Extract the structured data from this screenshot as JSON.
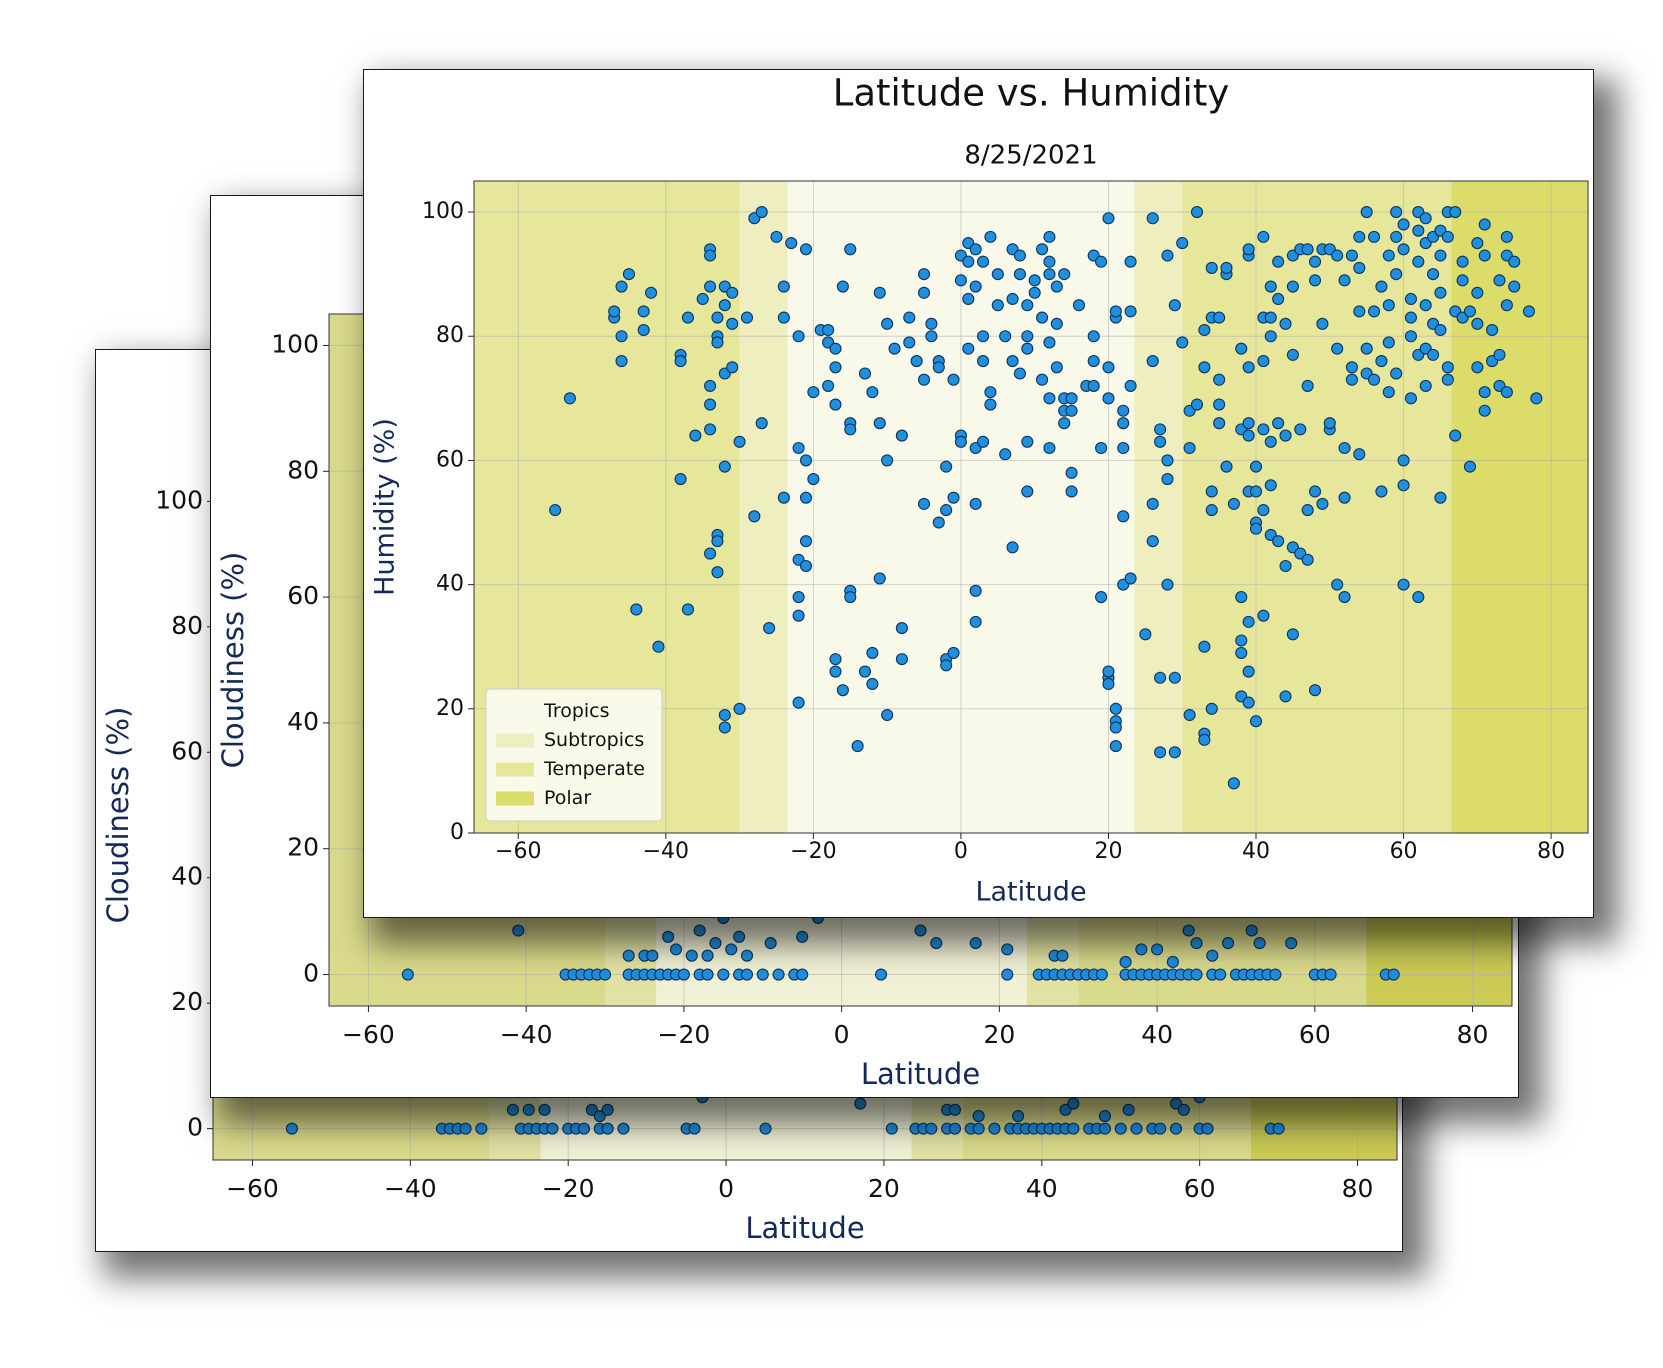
{
  "chart_data": [
    {
      "type": "scatter",
      "xlabel": "Latitude",
      "ylabel": "Cloudiness (%)",
      "xlim": [
        -65,
        85
      ],
      "ylim": [
        -5,
        105
      ],
      "xticks": [
        {
          "value": -60,
          "label": "−60"
        },
        {
          "value": -40,
          "label": "−40"
        },
        {
          "value": -20,
          "label": "−20"
        },
        0,
        20,
        40,
        60,
        80
      ],
      "yticks": [
        0,
        20,
        40,
        60,
        80,
        100
      ],
      "grid": true,
      "color": "#1f8fe0",
      "zones": [
        {
          "color": "#f1f1d6",
          "ranges": [
            [
              -23.5,
              23.5
            ]
          ]
        },
        {
          "color": "#e2e2a4",
          "ranges": [
            [
              -30,
              -23.5
            ],
            [
              23.5,
              30
            ]
          ]
        },
        {
          "color": "#dada8c",
          "ranges": [
            [
              -66.5,
              -30
            ],
            [
              30,
              66.5
            ]
          ]
        },
        {
          "color": "#cbcb55",
          "ranges": [
            [
              -90,
              -66.5
            ],
            [
              66.5,
              90
            ]
          ]
        }
      ],
      "x": [
        -55,
        -36,
        -35,
        -34,
        -33,
        -31,
        -26,
        -25,
        -24,
        -23,
        -22,
        -20,
        -19,
        -18,
        -16,
        -15,
        -13,
        -5,
        -4,
        5,
        21,
        24,
        25,
        26,
        28,
        29,
        31,
        32,
        34,
        36,
        37,
        38,
        39,
        40,
        41,
        42,
        43,
        44,
        46,
        47,
        48,
        50,
        52,
        54,
        55,
        57,
        60,
        61,
        69,
        70,
        -27,
        -25,
        -23,
        -17,
        -16,
        -15,
        -3,
        17,
        28,
        29,
        37,
        43,
        44,
        51,
        57,
        60,
        32,
        48,
        58
      ],
      "values": [
        0,
        0,
        0,
        0,
        0,
        0,
        0,
        0,
        0,
        0,
        0,
        0,
        0,
        0,
        0,
        0,
        0,
        0,
        0,
        0,
        0,
        0,
        0,
        0,
        0,
        0,
        0,
        0,
        0,
        0,
        0,
        0,
        0,
        0,
        0,
        0,
        0,
        0,
        0,
        0,
        0,
        0,
        0,
        0,
        0,
        0,
        0,
        0,
        0,
        0,
        3,
        3,
        3,
        3,
        2,
        3,
        5,
        4,
        3,
        3,
        2,
        3,
        4,
        3,
        4,
        5,
        2,
        2,
        3
      ]
    },
    {
      "type": "scatter",
      "xlabel": "Latitude",
      "ylabel": "Cloudiness (%)",
      "xlim": [
        -65,
        85
      ],
      "ylim": [
        -5,
        105
      ],
      "xticks": [
        {
          "value": -60,
          "label": "−60"
        },
        {
          "value": -40,
          "label": "−40"
        },
        {
          "value": -20,
          "label": "−20"
        },
        0,
        20,
        40,
        60,
        80
      ],
      "yticks": [
        0,
        20,
        40,
        60,
        80,
        100
      ],
      "grid": true,
      "color": "#1f8fe0",
      "zones": [
        {
          "color": "#f1f1d6",
          "ranges": [
            [
              -23.5,
              23.5
            ]
          ]
        },
        {
          "color": "#e2e2a4",
          "ranges": [
            [
              -30,
              -23.5
            ],
            [
              23.5,
              30
            ]
          ]
        },
        {
          "color": "#dada8c",
          "ranges": [
            [
              -66.5,
              -30
            ],
            [
              30,
              66.5
            ]
          ]
        },
        {
          "color": "#cbcb55",
          "ranges": [
            [
              -90,
              -66.5
            ],
            [
              66.5,
              90
            ]
          ]
        }
      ],
      "x": [
        -55,
        -35,
        -34,
        -33,
        -32,
        -31,
        -30,
        -27,
        -26,
        -25,
        -24,
        -23,
        -22,
        -21,
        -20,
        -18,
        -17,
        -15,
        -13,
        -12,
        -10,
        -8,
        -6,
        -5,
        5,
        21,
        25,
        26,
        27,
        28,
        29,
        30,
        31,
        32,
        33,
        36,
        37,
        38,
        39,
        40,
        41,
        42,
        43,
        44,
        45,
        47,
        48,
        50,
        51,
        52,
        53,
        54,
        55,
        60,
        61,
        62,
        69,
        70,
        -41,
        -27,
        -25,
        -24,
        -22,
        -21,
        -19,
        -18,
        -17,
        -16,
        -15,
        -14,
        -13,
        -12,
        -9,
        -5,
        -3,
        10,
        12,
        17,
        21,
        27,
        28,
        40,
        44,
        45,
        47,
        49,
        52,
        53,
        57,
        42,
        36,
        38
      ],
      "values": [
        0,
        0,
        0,
        0,
        0,
        0,
        0,
        0,
        0,
        0,
        0,
        0,
        0,
        0,
        0,
        0,
        0,
        0,
        0,
        0,
        0,
        0,
        0,
        0,
        0,
        0,
        0,
        0,
        0,
        0,
        0,
        0,
        0,
        0,
        0,
        0,
        0,
        0,
        0,
        0,
        0,
        0,
        0,
        0,
        0,
        0,
        0,
        0,
        0,
        0,
        0,
        0,
        0,
        0,
        0,
        0,
        0,
        0,
        7,
        3,
        3,
        3,
        6,
        4,
        3,
        7,
        3,
        5,
        9,
        4,
        6,
        3,
        5,
        6,
        9,
        7,
        5,
        5,
        4,
        3,
        3,
        4,
        7,
        5,
        3,
        5,
        7,
        5,
        5,
        2,
        2,
        4
      ]
    },
    {
      "type": "scatter",
      "title": "Latitude vs. Humidity",
      "subtitle": "8/25/2021",
      "xlabel": "Latitude",
      "ylabel": "Humidity (%)",
      "xlim": [
        -66,
        85
      ],
      "ylim": [
        0,
        105
      ],
      "xticks": [
        {
          "value": -60,
          "label": "−60"
        },
        {
          "value": -40,
          "label": "−40"
        },
        {
          "value": -20,
          "label": "−20"
        },
        0,
        20,
        40,
        60,
        80
      ],
      "yticks": [
        0,
        20,
        40,
        60,
        80,
        100
      ],
      "grid": true,
      "color": "#1f8fe0",
      "legend": "lower left",
      "zones": [
        {
          "name": "Tropics",
          "color": "#f9f9ea",
          "ranges": [
            [
              -23.5,
              23.5
            ]
          ]
        },
        {
          "name": "Subtropics",
          "color": "#eeeebf",
          "ranges": [
            [
              -30,
              -23.5
            ],
            [
              23.5,
              30
            ]
          ]
        },
        {
          "name": "Temperate",
          "color": "#e7e79c",
          "ranges": [
            [
              -66.5,
              -30
            ],
            [
              30,
              66.5
            ]
          ]
        },
        {
          "name": "Polar",
          "color": "#dcdc6a",
          "ranges": [
            [
              -90,
              -66.5
            ],
            [
              66.5,
              90
            ]
          ]
        }
      ],
      "x": [
        -55,
        -53,
        -47,
        -47,
        -46,
        -46,
        -46,
        -45,
        -44,
        -43,
        -43,
        -42,
        -41,
        -38,
        -38,
        -38,
        -37,
        -37,
        -36,
        -35,
        -34,
        -34,
        -34,
        -34,
        -34,
        -34,
        -34,
        -33,
        -33,
        -33,
        -33,
        -33,
        -33,
        -32,
        -32,
        -32,
        -32,
        -32,
        -32,
        -31,
        -31,
        -31,
        -30,
        -30,
        -29,
        -28,
        -28,
        -27,
        -27,
        -26,
        -25,
        -24,
        -24,
        -24,
        -23,
        -22,
        -22,
        -22,
        -22,
        -22,
        -22,
        -21,
        -21,
        -21,
        -21,
        -21,
        -20,
        -20,
        -19,
        -18,
        -18,
        -18,
        -17,
        -17,
        -17,
        -17,
        -17,
        -16,
        -16,
        -15,
        -15,
        -15,
        -15,
        -15,
        -14,
        -13,
        -13,
        -12,
        -12,
        -12,
        -11,
        -11,
        -11,
        -10,
        -10,
        -10,
        -9,
        -8,
        -8,
        -8,
        -7,
        -7,
        -6,
        -5,
        -5,
        -5,
        -5,
        -4,
        -4,
        -3,
        -3,
        -3,
        -2,
        -2,
        -2,
        -2,
        -1,
        -1,
        -1,
        0,
        0,
        0,
        0,
        1,
        1,
        1,
        1,
        2,
        2,
        2,
        2,
        2,
        2,
        3,
        3,
        3,
        3,
        4,
        4,
        4,
        5,
        5,
        6,
        6,
        7,
        7,
        7,
        7,
        8,
        8,
        8,
        9,
        9,
        9,
        9,
        9,
        10,
        10,
        11,
        11,
        11,
        12,
        12,
        12,
        12,
        12,
        12,
        13,
        13,
        13,
        14,
        14,
        14,
        14,
        15,
        15,
        15,
        15,
        16,
        17,
        18,
        18,
        18,
        18,
        19,
        19,
        19,
        20,
        20,
        20,
        20,
        20,
        20,
        21,
        21,
        21,
        21,
        21,
        21,
        22,
        22,
        22,
        22,
        22,
        23,
        23,
        23,
        23,
        26,
        25,
        26,
        26,
        26,
        27,
        27,
        27,
        27,
        28,
        28,
        28,
        28,
        29,
        29,
        29,
        30,
        30,
        31,
        31,
        31,
        32,
        32,
        33,
        33,
        33,
        33,
        33,
        34,
        34,
        34,
        34,
        34,
        35,
        35,
        35,
        35,
        36,
        36,
        36,
        37,
        37,
        38,
        38,
        38,
        38,
        38,
        38,
        39,
        39,
        39,
        39,
        39,
        39,
        39,
        39,
        39,
        40,
        40,
        40,
        40,
        40,
        41,
        41,
        41,
        41,
        41,
        41,
        42,
        42,
        42,
        42,
        42,
        42,
        43,
        43,
        43,
        43,
        44,
        44,
        44,
        44,
        45,
        45,
        45,
        45,
        45,
        46,
        46,
        46,
        47,
        47,
        47,
        47,
        48,
        48,
        48,
        48,
        49,
        49,
        49,
        50,
        50,
        50,
        51,
        51,
        51,
        52,
        52,
        52,
        52,
        53,
        53,
        53,
        54,
        54,
        54,
        54,
        55,
        55,
        55,
        56,
        56,
        56,
        57,
        57,
        57,
        58,
        58,
        58,
        58,
        59,
        59,
        59,
        59,
        60,
        60,
        60,
        60,
        60,
        61,
        61,
        61,
        61,
        62,
        62,
        62,
        62,
        62,
        63,
        63,
        63,
        63,
        63,
        64,
        64,
        64,
        64,
        65,
        65,
        65,
        65,
        65,
        66,
        66,
        66,
        66,
        67,
        67,
        67,
        68,
        68,
        68,
        69,
        69,
        70,
        70,
        70,
        70,
        71,
        71,
        71,
        71,
        72,
        72,
        73,
        73,
        73,
        74,
        74,
        74,
        74,
        75,
        75,
        77,
        78
      ],
      "values": [
        52,
        70,
        83,
        84,
        88,
        80,
        76,
        90,
        36,
        81,
        84,
        87,
        30,
        57,
        77,
        76,
        36,
        83,
        64,
        86,
        88,
        94,
        93,
        72,
        69,
        65,
        45,
        83,
        80,
        79,
        48,
        47,
        42,
        88,
        85,
        74,
        59,
        19,
        17,
        87,
        75,
        82,
        20,
        63,
        83,
        99,
        51,
        100,
        66,
        33,
        96,
        88,
        54,
        83,
        95,
        80,
        62,
        44,
        38,
        35,
        21,
        94,
        60,
        47,
        43,
        54,
        57,
        71,
        81,
        81,
        72,
        79,
        78,
        75,
        69,
        28,
        26,
        23,
        88,
        94,
        66,
        65,
        39,
        38,
        14,
        74,
        26,
        71,
        24,
        29,
        66,
        87,
        41,
        82,
        60,
        19,
        78,
        64,
        33,
        28,
        79,
        83,
        76,
        73,
        90,
        87,
        53,
        82,
        80,
        76,
        75,
        50,
        52,
        59,
        28,
        27,
        29,
        54,
        73,
        93,
        89,
        64,
        63,
        86,
        78,
        95,
        92,
        94,
        88,
        62,
        53,
        39,
        34,
        92,
        80,
        76,
        63,
        96,
        71,
        69,
        85,
        90,
        80,
        61,
        94,
        86,
        76,
        46,
        74,
        90,
        93,
        85,
        80,
        78,
        55,
        63,
        87,
        89,
        94,
        73,
        83,
        96,
        90,
        92,
        79,
        70,
        62,
        82,
        75,
        88,
        90,
        70,
        68,
        66,
        58,
        55,
        68,
        70,
        85,
        72,
        93,
        80,
        76,
        72,
        92,
        62,
        38,
        25,
        26,
        99,
        75,
        70,
        24,
        83,
        84,
        18,
        17,
        14,
        20,
        51,
        40,
        62,
        68,
        66,
        41,
        92,
        84,
        72,
        99,
        32,
        47,
        53,
        76,
        13,
        25,
        65,
        63,
        93,
        60,
        57,
        40,
        85,
        13,
        25,
        95,
        79,
        19,
        62,
        68,
        100,
        69,
        75,
        81,
        16,
        15,
        30,
        91,
        83,
        55,
        52,
        20,
        83,
        73,
        66,
        69,
        90,
        91,
        59,
        53,
        8,
        78,
        65,
        38,
        31,
        29,
        22,
        93,
        94,
        66,
        64,
        75,
        55,
        34,
        26,
        21,
        59,
        55,
        50,
        49,
        18,
        96,
        83,
        76,
        65,
        52,
        35,
        88,
        83,
        80,
        63,
        56,
        48,
        86,
        92,
        66,
        47,
        82,
        64,
        43,
        22,
        88,
        93,
        77,
        46,
        32,
        94,
        65,
        45,
        94,
        72,
        52,
        44,
        92,
        89,
        55,
        23,
        94,
        82,
        53,
        94,
        65,
        66,
        93,
        78,
        40,
        89,
        62,
        54,
        38,
        93,
        73,
        75,
        96,
        84,
        61,
        91,
        100,
        78,
        74,
        84,
        73,
        96,
        88,
        76,
        55,
        93,
        85,
        79,
        71,
        90,
        96,
        100,
        74,
        94,
        98,
        60,
        56,
        40,
        86,
        83,
        80,
        70,
        100,
        97,
        92,
        77,
        38,
        99,
        95,
        85,
        78,
        72,
        96,
        90,
        82,
        77,
        87,
        97,
        93,
        81,
        54,
        100,
        96,
        75,
        73,
        84,
        100,
        64,
        92,
        89,
        83,
        84,
        59,
        95,
        87,
        75,
        82,
        93,
        98,
        71,
        68,
        81,
        76,
        89,
        77,
        72,
        96,
        93,
        85,
        71,
        92,
        88,
        84,
        70
      ]
    }
  ]
}
